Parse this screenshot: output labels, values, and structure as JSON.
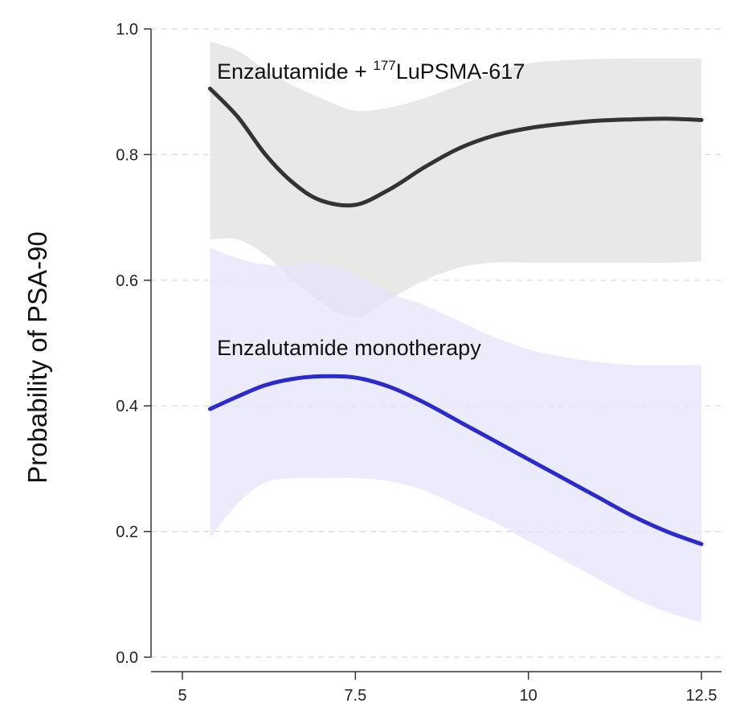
{
  "chart_data": {
    "type": "line",
    "title": "",
    "xlabel": "",
    "ylabel": "Probability of PSA-90",
    "xlim": [
      4.8,
      13.0
    ],
    "ylim": [
      0.0,
      1.0
    ],
    "x_ticks": [
      "5",
      "7.5",
      "10",
      "12.5"
    ],
    "x_tick_values": [
      5,
      7.5,
      10,
      12.5
    ],
    "y_ticks": [
      "0.0",
      "0.2",
      "0.4",
      "0.6",
      "0.8",
      "1.0"
    ],
    "y_tick_values": [
      0.0,
      0.2,
      0.4,
      0.6,
      0.8,
      1.0
    ],
    "grid": "horizontal dashed",
    "series": [
      {
        "name": "Enzalutamide + 177LuPSMA-617",
        "label_main": "Enzalutamide + ",
        "label_sup": "177",
        "label_tail": "LuPSMA-617",
        "color": "#333333",
        "band_color": "#e6e6e4",
        "x": [
          5.4,
          5.8,
          6.2,
          6.6,
          7.0,
          7.5,
          8.0,
          8.5,
          9.0,
          9.5,
          10.0,
          10.5,
          11.0,
          11.5,
          12.0,
          12.5
        ],
        "y": [
          0.905,
          0.86,
          0.8,
          0.755,
          0.727,
          0.72,
          0.745,
          0.78,
          0.81,
          0.83,
          0.842,
          0.849,
          0.854,
          0.856,
          0.857,
          0.855
        ],
        "lower": [
          0.665,
          0.665,
          0.64,
          0.6,
          0.565,
          0.54,
          0.57,
          0.6,
          0.62,
          0.628,
          0.628,
          0.628,
          0.628,
          0.628,
          0.628,
          0.63
        ],
        "upper": [
          0.98,
          0.965,
          0.935,
          0.91,
          0.89,
          0.87,
          0.875,
          0.89,
          0.91,
          0.93,
          0.945,
          0.95,
          0.952,
          0.953,
          0.953,
          0.953
        ]
      },
      {
        "name": "Enzalutamide monotherapy",
        "color": "#2b2bcc",
        "band_color": "#e4e4fb",
        "x": [
          5.4,
          5.8,
          6.2,
          6.6,
          7.0,
          7.5,
          8.0,
          8.5,
          9.0,
          9.5,
          10.0,
          10.5,
          11.0,
          11.5,
          12.0,
          12.5
        ],
        "y": [
          0.395,
          0.415,
          0.433,
          0.443,
          0.447,
          0.445,
          0.43,
          0.405,
          0.375,
          0.345,
          0.315,
          0.285,
          0.255,
          0.225,
          0.2,
          0.18
        ],
        "lower": [
          0.19,
          0.245,
          0.278,
          0.285,
          0.285,
          0.285,
          0.28,
          0.265,
          0.24,
          0.215,
          0.185,
          0.155,
          0.125,
          0.095,
          0.072,
          0.055
        ],
        "upper": [
          0.652,
          0.635,
          0.625,
          0.625,
          0.627,
          0.61,
          0.58,
          0.56,
          0.535,
          0.51,
          0.49,
          0.478,
          0.47,
          0.465,
          0.465,
          0.465
        ]
      }
    ]
  }
}
